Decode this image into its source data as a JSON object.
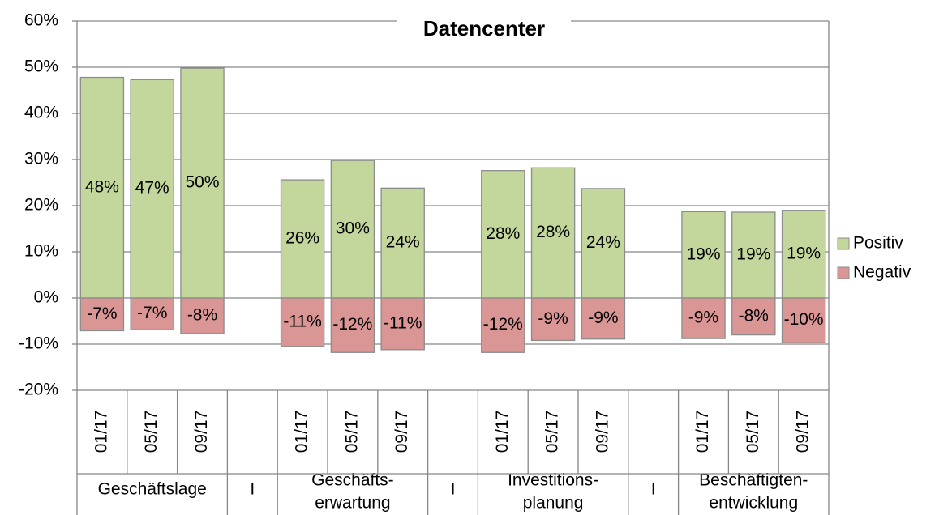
{
  "chart_data": {
    "type": "bar",
    "stacked": true,
    "title": "Datencenter",
    "groups": [
      {
        "label": [
          "Geschäftslage"
        ],
        "categories": [
          "01/17",
          "05/17",
          "09/17"
        ]
      },
      {
        "label": [
          "I"
        ],
        "categories": [
          null
        ]
      },
      {
        "label": [
          "Geschäfts-",
          "erwartung"
        ],
        "categories": [
          "01/17",
          "05/17",
          "09/17"
        ]
      },
      {
        "label": [
          "I"
        ],
        "categories": [
          null
        ]
      },
      {
        "label": [
          "Investitions-",
          "planung"
        ],
        "categories": [
          "01/17",
          "05/17",
          "09/17"
        ]
      },
      {
        "label": [
          "I"
        ],
        "categories": [
          null
        ]
      },
      {
        "label": [
          "Beschäftigten-",
          "entwicklung"
        ],
        "categories": [
          "01/17",
          "05/17",
          "09/17"
        ]
      }
    ],
    "series": [
      {
        "name": "Positiv",
        "color": "#c3d69b",
        "values": [
          47.8,
          47.3,
          49.8,
          null,
          25.6,
          29.8,
          23.8,
          null,
          27.6,
          28.2,
          23.7,
          null,
          18.7,
          18.6,
          19.0
        ],
        "value_labels": [
          "48%",
          "47%",
          "50%",
          null,
          "26%",
          "30%",
          "24%",
          null,
          "28%",
          "28%",
          "24%",
          null,
          "19%",
          "19%",
          "19%"
        ]
      },
      {
        "name": "Negativ",
        "color": "#d99694",
        "values": [
          -7.1,
          -6.9,
          -7.7,
          null,
          -10.5,
          -11.8,
          -11.2,
          null,
          -11.8,
          -9.2,
          -8.9,
          null,
          -8.8,
          -8.0,
          -9.7
        ],
        "value_labels": [
          "-7%",
          "-7%",
          "-8%",
          null,
          "-11%",
          "-12%",
          "-11%",
          null,
          "-12%",
          "-9%",
          "-9%",
          null,
          "-9%",
          "-8%",
          "-10%"
        ]
      }
    ],
    "ylim": [
      -20,
      60
    ],
    "yticks": [
      {
        "value": -20,
        "label": "-20%"
      },
      {
        "value": -10,
        "label": "-10%"
      },
      {
        "value": 0,
        "label": "0%"
      },
      {
        "value": 10,
        "label": "10%"
      },
      {
        "value": 20,
        "label": "20%"
      },
      {
        "value": 30,
        "label": "30%"
      },
      {
        "value": 40,
        "label": "40%"
      },
      {
        "value": 50,
        "label": "50%"
      },
      {
        "value": 60,
        "label": "60%"
      }
    ],
    "grid": true,
    "legend": "right"
  }
}
